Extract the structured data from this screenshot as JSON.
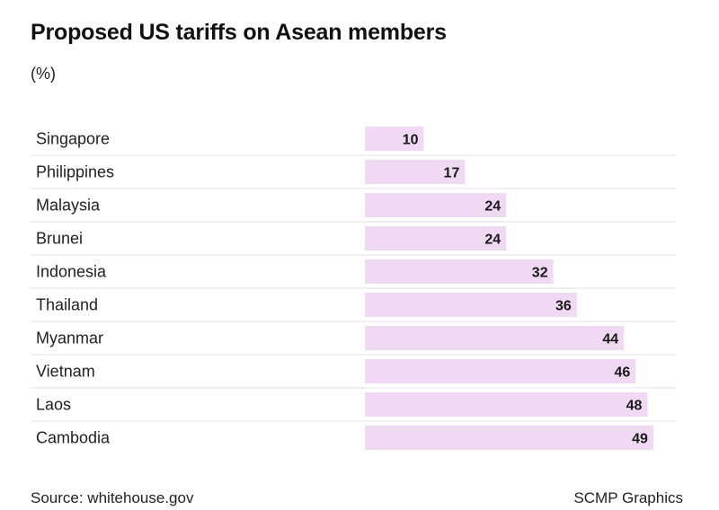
{
  "chart_data": {
    "type": "bar",
    "orientation": "horizontal",
    "title": "Proposed US tariffs on Asean members",
    "subtitle": "(%)",
    "categories": [
      "Singapore",
      "Philippines",
      "Malaysia",
      "Brunei",
      "Indonesia",
      "Thailand",
      "Myanmar",
      "Vietnam",
      "Laos",
      "Cambodia"
    ],
    "values": [
      10,
      17,
      24,
      24,
      32,
      36,
      44,
      46,
      48,
      49
    ],
    "xlim": [
      0,
      50
    ],
    "grid": false,
    "legend": "none",
    "bar_color": "#f0d9f3",
    "label_color": "#1a1a1a",
    "divider_color": "#e3e3e3"
  },
  "footer": {
    "source": "Source: whitehouse.gov",
    "credit": "SCMP Graphics"
  }
}
